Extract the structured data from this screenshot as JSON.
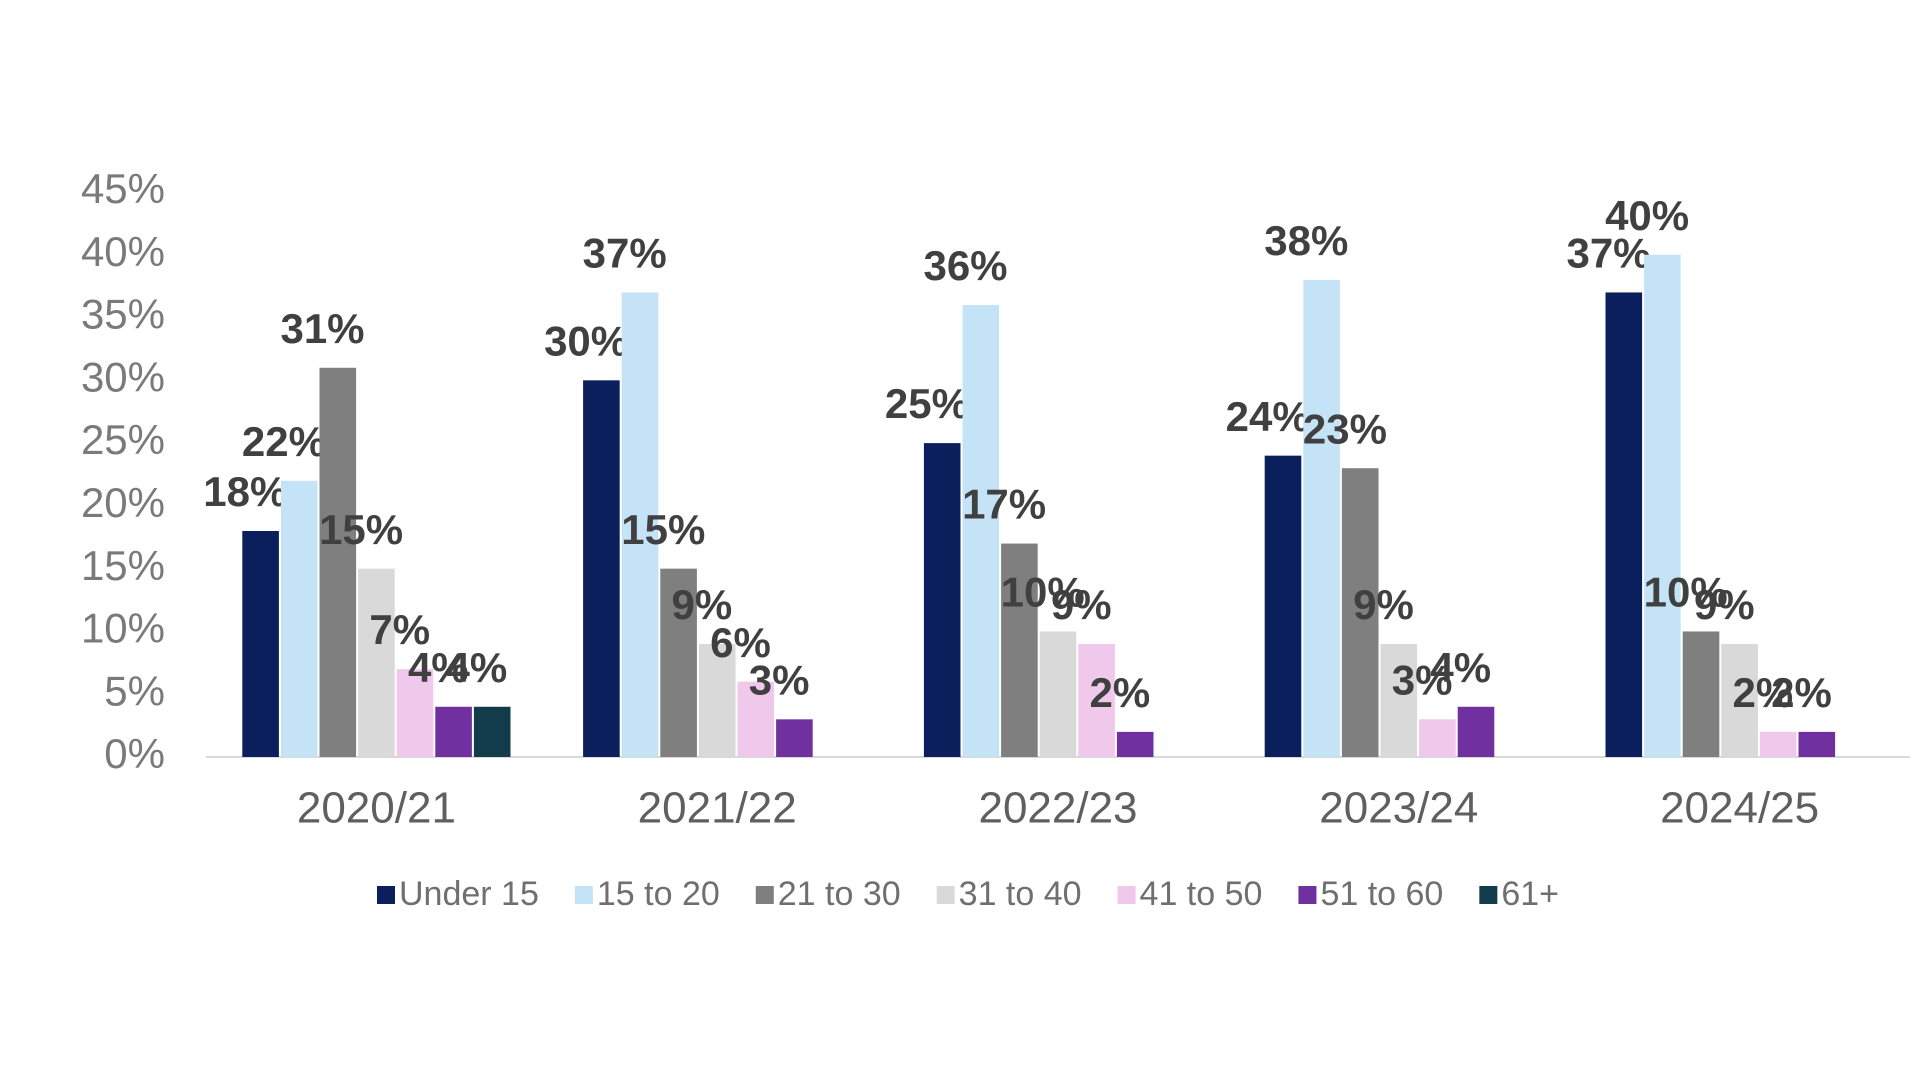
{
  "chart_data": {
    "type": "bar",
    "categories": [
      "2020/21",
      "2021/22",
      "2022/23",
      "2023/24",
      "2024/25"
    ],
    "series": [
      {
        "name": "Under 15",
        "color": "#0b1f5c",
        "values": [
          18,
          30,
          25,
          24,
          37
        ],
        "value_labels": [
          "18%",
          "30%",
          "25%",
          "24%",
          "37%"
        ]
      },
      {
        "name": "15 to 20",
        "color": "#c5e3f6",
        "values": [
          22,
          37,
          36,
          38,
          40
        ],
        "value_labels": [
          "22%",
          "37%",
          "36%",
          "38%",
          "40%"
        ]
      },
      {
        "name": "21 to 30",
        "color": "#7f7f7f",
        "values": [
          31,
          15,
          17,
          23,
          10
        ],
        "value_labels": [
          "31%",
          "15%",
          "17%",
          "23%",
          "10%"
        ]
      },
      {
        "name": "31 to 40",
        "color": "#d9d9d9",
        "values": [
          15,
          9,
          10,
          9,
          9
        ],
        "value_labels": [
          "15%",
          "9%",
          "10%",
          "9%",
          "9%"
        ]
      },
      {
        "name": "41 to 50",
        "color": "#f0c8ec",
        "values": [
          7,
          6,
          9,
          3,
          2
        ],
        "value_labels": [
          "7%",
          "6%",
          "9%",
          "3%",
          "2%"
        ]
      },
      {
        "name": "51 to 60",
        "color": "#7030a0",
        "values": [
          4,
          3,
          2,
          4,
          2
        ],
        "value_labels": [
          "4%",
          "3%",
          "2%",
          "4%",
          "2%"
        ]
      },
      {
        "name": "61+",
        "color": "#123c4c",
        "values": [
          4,
          null,
          null,
          null,
          null
        ],
        "value_labels": [
          "4%",
          null,
          null,
          null,
          null
        ]
      }
    ],
    "ylim": [
      0,
      45
    ],
    "yticks": [
      {
        "value": 0,
        "label": "0%"
      },
      {
        "value": 5,
        "label": "5%"
      },
      {
        "value": 10,
        "label": "10%"
      },
      {
        "value": 15,
        "label": "15%"
      },
      {
        "value": 20,
        "label": "20%"
      },
      {
        "value": 25,
        "label": "25%"
      },
      {
        "value": 30,
        "label": "30%"
      },
      {
        "value": 35,
        "label": "35%"
      },
      {
        "value": 40,
        "label": "40%"
      },
      {
        "value": 45,
        "label": "45%"
      }
    ],
    "grid": false,
    "legend": "bottom"
  }
}
